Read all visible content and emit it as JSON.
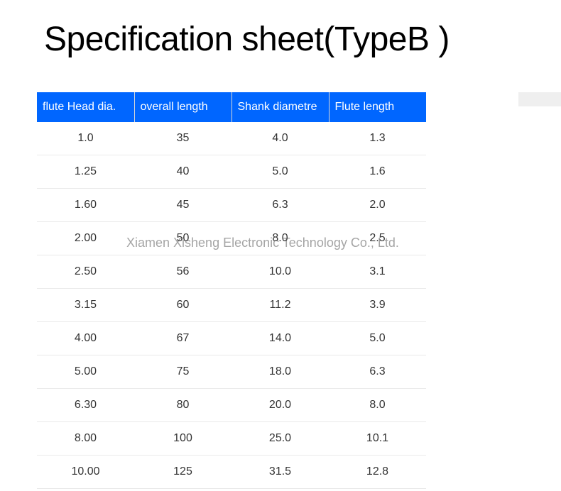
{
  "title": "Specification sheet(TypeB )",
  "watermark": "Xiamen Xisheng Electronic Technology Co., Ltd.",
  "table": {
    "type": "table",
    "header_bg": "#0066ff",
    "header_fg": "#ffffff",
    "cell_fg": "#333333",
    "border_color": "#eaeaea",
    "font_size": 16,
    "columns": [
      "flute Head dia.",
      "overall length",
      "Shank diametre",
      "Flute length"
    ],
    "column_widths": [
      "25%",
      "25%",
      "25%",
      "25%"
    ],
    "rows": [
      [
        "1.0",
        "35",
        "4.0",
        "1.3"
      ],
      [
        "1.25",
        "40",
        "5.0",
        "1.6"
      ],
      [
        "1.60",
        "45",
        "6.3",
        "2.0"
      ],
      [
        "2.00",
        "50",
        "8.0",
        "2.5"
      ],
      [
        "2.50",
        "56",
        "10.0",
        "3.1"
      ],
      [
        "3.15",
        "60",
        "11.2",
        "3.9"
      ],
      [
        "4.00",
        "67",
        "14.0",
        "5.0"
      ],
      [
        "5.00",
        "75",
        "18.0",
        "6.3"
      ],
      [
        "6.30",
        "80",
        "20.0",
        "8.0"
      ],
      [
        "8.00",
        "100",
        "25.0",
        "10.1"
      ],
      [
        "10.00",
        "125",
        "31.5",
        "12.8"
      ]
    ]
  }
}
